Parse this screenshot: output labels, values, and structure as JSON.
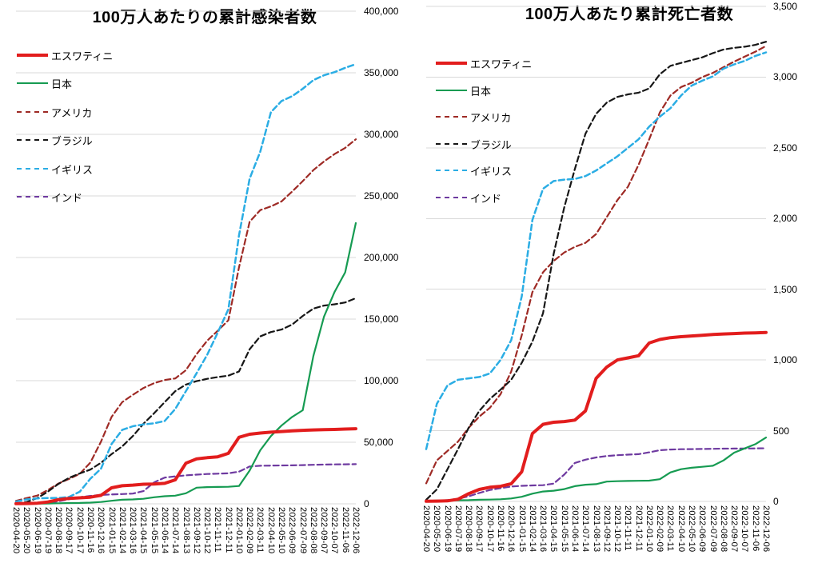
{
  "page": {
    "background": "#ffffff",
    "grid_color": "#d9d9d9",
    "text_color": "#000000"
  },
  "chart_data": [
    {
      "type": "line",
      "key": "cumulative-infections",
      "title": "100万人あたりの累計感染者数",
      "xlabel": "",
      "ylabel": "",
      "y_min": 0,
      "y_max": 400000,
      "y_step": 50000,
      "y_tick_labels": [
        "0",
        "50,000",
        "100,000",
        "150,000",
        "200,000",
        "250,000",
        "300,000",
        "350,000",
        "400,000"
      ],
      "grid": true,
      "legend_position": "inside-top-left",
      "categories": [
        "2020-04-20",
        "2020-05-20",
        "2020-06-19",
        "2020-07-19",
        "2020-08-18",
        "2020-09-17",
        "2020-10-17",
        "2020-11-16",
        "2020-12-16",
        "2021-01-15",
        "2021-02-14",
        "2021-03-16",
        "2021-04-15",
        "2021-05-15",
        "2021-06-14",
        "2021-07-14",
        "2021-08-13",
        "2021-09-12",
        "2021-10-12",
        "2021-11-11",
        "2021-12-11",
        "2022-01-10",
        "2022-02-09",
        "2022-03-11",
        "2022-04-10",
        "2022-05-10",
        "2022-06-09",
        "2022-07-09",
        "2022-08-08",
        "2022-09-07",
        "2022-10-07",
        "2022-11-06",
        "2022-12-06"
      ],
      "series": [
        {
          "key": "eswatini",
          "name": "エスワティニ",
          "color": "#e21d1d",
          "line": "solid",
          "width": 4,
          "values": [
            150,
            260,
            500,
            1500,
            3400,
            4400,
            4900,
            5400,
            6900,
            13000,
            14700,
            15200,
            15900,
            16100,
            16600,
            19500,
            33000,
            36500,
            37500,
            38200,
            41000,
            54000,
            56500,
            57500,
            58200,
            58700,
            59200,
            59700,
            60000,
            60200,
            60400,
            60700,
            61000
          ]
        },
        {
          "key": "japan",
          "name": "日本",
          "color": "#169b52",
          "line": "solid",
          "width": 2.2,
          "values": [
            100,
            130,
            150,
            230,
            450,
            620,
            730,
            950,
            1500,
            2450,
            3300,
            3600,
            4100,
            5300,
            6200,
            6600,
            8600,
            13100,
            13600,
            13700,
            13800,
            14500,
            27000,
            43500,
            55000,
            63500,
            70500,
            76000,
            120000,
            152000,
            172000,
            188000,
            228000
          ]
        },
        {
          "key": "usa",
          "name": "アメリカ",
          "color": "#9e2a25",
          "line": "dashed",
          "width": 2.2,
          "values": [
            2400,
            4700,
            6700,
            11200,
            16500,
            20200,
            24300,
            33500,
            50500,
            70500,
            82500,
            88500,
            94000,
            98000,
            100500,
            101800,
            108500,
            121500,
            132500,
            140500,
            149000,
            192000,
            229000,
            238500,
            241500,
            245500,
            253500,
            262000,
            271000,
            278000,
            284000,
            289000,
            296000
          ]
        },
        {
          "key": "brazil",
          "name": "ブラジル",
          "color": "#161616",
          "line": "dashed",
          "width": 2.2,
          "values": [
            250,
            1400,
            4700,
            9900,
            16200,
            21100,
            24700,
            27800,
            33300,
            40300,
            46600,
            55000,
            65000,
            73500,
            82500,
            91500,
            96800,
            99600,
            101500,
            102900,
            104100,
            107500,
            125500,
            136000,
            139500,
            141500,
            145500,
            152500,
            158500,
            161000,
            162000,
            163500,
            167000
          ]
        },
        {
          "key": "uk",
          "name": "イギリス",
          "color": "#2bade4",
          "line": "dashed",
          "width": 2.5,
          "values": [
            1800,
            3600,
            4400,
            4700,
            4800,
            5600,
            9800,
            20400,
            28600,
            48500,
            60000,
            63000,
            64500,
            65400,
            67200,
            77000,
            91500,
            106000,
            121000,
            139000,
            158000,
            218000,
            264000,
            286000,
            318000,
            327000,
            331000,
            337000,
            344000,
            348000,
            350500,
            354000,
            357000
          ]
        },
        {
          "key": "india",
          "name": "インド",
          "color": "#6e3aa0",
          "line": "dashed",
          "width": 2.2,
          "values": [
            13,
            80,
            290,
            810,
            2000,
            3750,
            5400,
            6400,
            7200,
            7600,
            7900,
            8300,
            10300,
            17400,
            21300,
            22300,
            23100,
            23700,
            24200,
            24500,
            24800,
            26100,
            30300,
            30900,
            31050,
            31150,
            31250,
            31450,
            31700,
            31900,
            32000,
            32100,
            32200
          ]
        }
      ]
    },
    {
      "type": "line",
      "key": "cumulative-deaths",
      "title": "100万人あたり累計死亡者数",
      "xlabel": "",
      "ylabel": "",
      "y_min": 0,
      "y_max": 3500,
      "y_step": 500,
      "y_tick_labels": [
        "0",
        "500",
        "1,000",
        "1,500",
        "2,000",
        "2,500",
        "3,000",
        "3,500"
      ],
      "grid": true,
      "legend_position": "inside-top-left",
      "categories": [
        "2020-04-20",
        "2020-05-20",
        "2020-06-19",
        "2020-07-19",
        "2020-08-18",
        "2020-09-17",
        "2020-10-17",
        "2020-11-16",
        "2020-12-16",
        "2021-01-15",
        "2021-02-14",
        "2021-03-16",
        "2021-04-15",
        "2021-05-15",
        "2021-06-14",
        "2021-07-14",
        "2021-08-13",
        "2021-09-12",
        "2021-10-12",
        "2021-11-11",
        "2021-12-11",
        "2022-01-10",
        "2022-02-09",
        "2022-03-11",
        "2022-04-10",
        "2022-05-10",
        "2022-06-09",
        "2022-07-09",
        "2022-08-08",
        "2022-09-07",
        "2022-10-07",
        "2022-11-06",
        "2022-12-06"
      ],
      "series": [
        {
          "key": "eswatini",
          "name": "エスワティニ",
          "color": "#e21d1d",
          "line": "solid",
          "width": 4,
          "values": [
            1,
            2,
            4,
            15,
            55,
            85,
            100,
            107,
            125,
            210,
            480,
            545,
            560,
            565,
            575,
            640,
            870,
            950,
            1000,
            1015,
            1030,
            1120,
            1145,
            1158,
            1165,
            1170,
            1175,
            1180,
            1184,
            1187,
            1190,
            1192,
            1195
          ]
        },
        {
          "key": "japan",
          "name": "日本",
          "color": "#169b52",
          "line": "solid",
          "width": 2.2,
          "values": [
            3,
            6,
            7,
            8,
            9,
            12,
            13,
            15,
            21,
            33,
            55,
            70,
            76,
            87,
            108,
            118,
            122,
            140,
            143,
            145,
            146,
            147,
            157,
            205,
            228,
            238,
            245,
            252,
            290,
            345,
            375,
            405,
            452
          ]
        },
        {
          "key": "usa",
          "name": "アメリカ",
          "color": "#9e2a25",
          "line": "dashed",
          "width": 2.2,
          "values": [
            128,
            290,
            357,
            423,
            520,
            600,
            662,
            758,
            918,
            1175,
            1480,
            1620,
            1700,
            1760,
            1800,
            1828,
            1890,
            2010,
            2130,
            2225,
            2380,
            2560,
            2750,
            2870,
            2930,
            2960,
            3000,
            3030,
            3070,
            3110,
            3145,
            3180,
            3220
          ]
        },
        {
          "key": "brazil",
          "name": "ブラジル",
          "color": "#161616",
          "line": "dashed",
          "width": 2.2,
          "values": [
            12,
            85,
            228,
            370,
            520,
            640,
            725,
            790,
            860,
            980,
            1130,
            1330,
            1750,
            2080,
            2350,
            2600,
            2740,
            2820,
            2860,
            2878,
            2890,
            2920,
            3020,
            3080,
            3100,
            3120,
            3140,
            3170,
            3195,
            3207,
            3215,
            3228,
            3250
          ]
        },
        {
          "key": "uk",
          "name": "イギリス",
          "color": "#2bade4",
          "line": "dashed",
          "width": 2.5,
          "values": [
            370,
            690,
            820,
            860,
            870,
            880,
            905,
            1000,
            1140,
            1450,
            1990,
            2210,
            2265,
            2275,
            2280,
            2300,
            2340,
            2390,
            2440,
            2500,
            2560,
            2650,
            2720,
            2780,
            2870,
            2940,
            2975,
            3005,
            3060,
            3090,
            3115,
            3150,
            3175
          ]
        },
        {
          "key": "india",
          "name": "インド",
          "color": "#6e3aa0",
          "line": "dashed",
          "width": 2.2,
          "values": [
            1,
            3,
            9,
            19,
            36,
            60,
            81,
            94,
            105,
            110,
            113,
            115,
            126,
            190,
            272,
            295,
            311,
            321,
            327,
            331,
            334,
            347,
            362,
            367,
            369,
            370,
            371,
            372,
            373,
            374,
            374,
            375,
            376
          ]
        }
      ]
    }
  ]
}
